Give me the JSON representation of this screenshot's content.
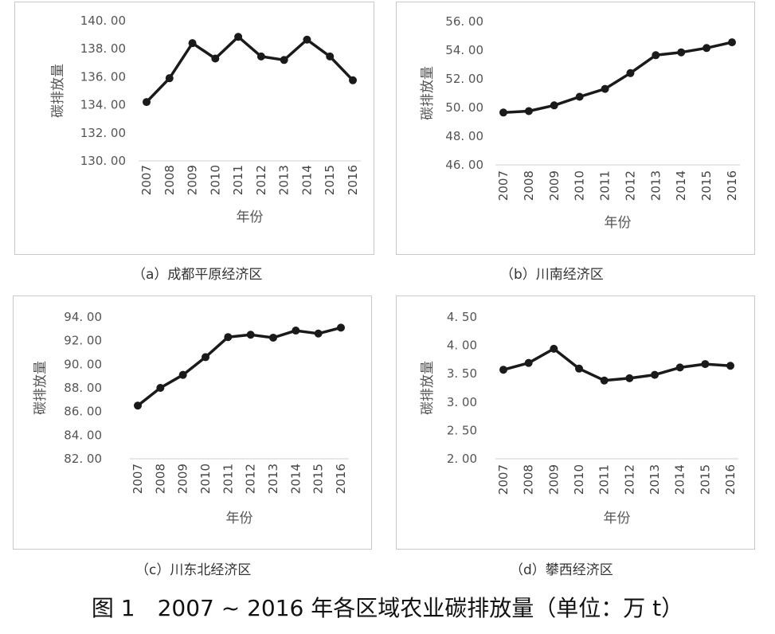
{
  "figure_title": "图 1　2007 ~ 2016 年各区域农业碳排放量（单位：万 t）",
  "chart_data": [
    {
      "type": "line",
      "caption": "（a）成都平原经济区",
      "xlabel": "年份",
      "ylabel": "碳排放量",
      "categories": [
        "2007",
        "2008",
        "2009",
        "2010",
        "2011",
        "2012",
        "2013",
        "2014",
        "2015",
        "2016"
      ],
      "values": [
        134.2,
        135.9,
        138.4,
        137.3,
        138.85,
        137.45,
        137.2,
        138.65,
        137.45,
        135.75
      ],
      "ylim": [
        130,
        140
      ],
      "yticks": [
        "130. 00",
        "132. 00",
        "134. 00",
        "136. 00",
        "138. 00",
        "140. 00"
      ],
      "grid": false,
      "line_color": "#1a1a1a"
    },
    {
      "type": "line",
      "caption": "（b）川南经济区",
      "xlabel": "年份",
      "ylabel": "碳排放量",
      "categories": [
        "2007",
        "2008",
        "2009",
        "2010",
        "2011",
        "2012",
        "2013",
        "2014",
        "2015",
        "2016"
      ],
      "values": [
        49.65,
        49.75,
        50.15,
        50.75,
        51.3,
        52.4,
        53.65,
        53.85,
        54.15,
        54.55
      ],
      "ylim": [
        46,
        56
      ],
      "yticks": [
        "46. 00",
        "48. 00",
        "50. 00",
        "52. 00",
        "54. 00",
        "56. 00"
      ],
      "grid": false,
      "line_color": "#1a1a1a"
    },
    {
      "type": "line",
      "caption": "（c）川东北经济区",
      "xlabel": "年份",
      "ylabel": "碳排放量",
      "categories": [
        "2007",
        "2008",
        "2009",
        "2010",
        "2011",
        "2012",
        "2013",
        "2014",
        "2015",
        "2016"
      ],
      "values": [
        86.5,
        88.0,
        89.1,
        90.6,
        92.3,
        92.5,
        92.25,
        92.85,
        92.6,
        93.1
      ],
      "ylim": [
        82,
        94
      ],
      "yticks": [
        "82. 00",
        "84. 00",
        "86. 00",
        "88. 00",
        "90. 00",
        "92. 00",
        "94. 00"
      ],
      "grid": false,
      "line_color": "#1a1a1a"
    },
    {
      "type": "line",
      "caption": "（d）攀西经济区",
      "xlabel": "年份",
      "ylabel": "碳排放量",
      "categories": [
        "2007",
        "2008",
        "2009",
        "2010",
        "2011",
        "2012",
        "2013",
        "2014",
        "2015",
        "2016"
      ],
      "values": [
        3.57,
        3.69,
        3.94,
        3.59,
        3.38,
        3.42,
        3.48,
        3.61,
        3.67,
        3.64
      ],
      "ylim": [
        2.0,
        4.5
      ],
      "yticks": [
        "2. 00",
        "2. 50",
        "3. 00",
        "3. 50",
        "4. 00",
        "4. 50"
      ],
      "grid": false,
      "line_color": "#1a1a1a"
    }
  ]
}
